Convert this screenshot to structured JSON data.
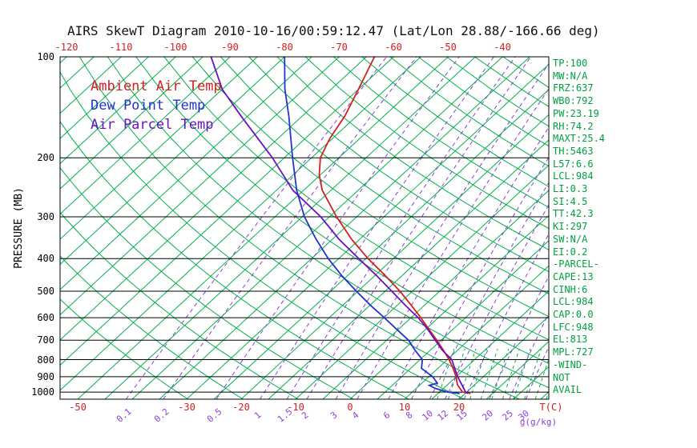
{
  "title": "AIRS SkewT Diagram 2010-10-16/00:59:12.47 (Lat/Lon 28.88/-166.66 deg)",
  "legend": [
    {
      "id": "ambient",
      "label": "Ambient Air Temp",
      "color": "#d02020"
    },
    {
      "id": "dewpoint",
      "label": "Dew Point Temp",
      "color": "#2233cc"
    },
    {
      "id": "parcel",
      "label": "Air Parcel Temp",
      "color": "#6a10c0"
    }
  ],
  "stats": [
    "TP:100",
    "MW:N/A",
    "FRZ:637",
    "WB0:792",
    "PW:23.19",
    "RH:74.2",
    "MAXT:25.4",
    "TH:5463",
    "L57:6.6",
    "LCL:984",
    "LI:0.3",
    "SI:4.5",
    "TT:42.3",
    "KI:297",
    "SW:N/A",
    "EI:0.2",
    "-PARCEL-",
    "CAPE:13",
    "CINH:6",
    "LCL:984",
    "CAP:0.0",
    "LFC:948",
    "EL:813",
    "MPL:727",
    "-WIND-",
    "NOT",
    "AVAIL"
  ],
  "colors": {
    "isotherm_green": "#00b04a",
    "mixing_purple": "#8a3fd6",
    "temp_red": "#d02020",
    "stats_green": "#00a040",
    "axis_black": "#000000"
  },
  "chart_data": {
    "type": "line",
    "variant": "skew-t-log-p",
    "title": "AIRS SkewT Diagram 2010-10-16/00:59:12.47 (Lat/Lon 28.88/-166.66 deg)",
    "xlabel": "T(C)",
    "ylabel": "PRESSURE (MB)",
    "y_scale": "log",
    "ylim": [
      1050,
      100
    ],
    "grid": "skew-t background: green 45-deg isotherms, green dry adiabats, purple dashed mixing-ratio lines, black isobars",
    "legend_position": "upper-left-inside",
    "axes": {
      "pressure_label": "PRESSURE (MB)",
      "pressure_ticks": [
        100,
        200,
        300,
        400,
        500,
        600,
        700,
        800,
        900,
        1000
      ],
      "top_temp_ticks": [
        -120,
        -110,
        -100,
        -90,
        -80,
        -70,
        -60,
        -50,
        -40
      ],
      "bottom_temp_ticks": [
        -50,
        -30,
        -20,
        -10,
        0,
        10,
        20
      ],
      "temp_unit": "T(C)",
      "mixing_ratio_ticks": [
        0.1,
        0.2,
        0.5,
        1,
        1.5,
        2,
        3,
        4,
        6,
        8,
        10,
        12,
        15,
        20,
        25,
        30
      ],
      "mixing_unit": "g(g/kg)"
    },
    "series": [
      {
        "id": "ambient",
        "name": "Ambient Air Temp",
        "color": "#d02020",
        "points": [
          [
            1010,
            21
          ],
          [
            1000,
            19.2
          ],
          [
            950,
            16.8
          ],
          [
            900,
            15
          ],
          [
            850,
            12.8
          ],
          [
            800,
            10.3
          ],
          [
            750,
            7.4
          ],
          [
            700,
            4.2
          ],
          [
            650,
            0.6
          ],
          [
            600,
            -3.2
          ],
          [
            550,
            -7.5
          ],
          [
            500,
            -12.3
          ],
          [
            450,
            -18
          ],
          [
            400,
            -24.6
          ],
          [
            350,
            -31.5
          ],
          [
            300,
            -38.7
          ],
          [
            250,
            -46.6
          ],
          [
            225,
            -50.2
          ],
          [
            200,
            -53.4
          ],
          [
            175,
            -55.5
          ],
          [
            150,
            -57.2
          ],
          [
            125,
            -60
          ],
          [
            100,
            -63.5
          ]
        ]
      },
      {
        "id": "dewpoint",
        "name": "Dew Point Temp",
        "color": "#2233cc",
        "points": [
          [
            1010,
            19
          ],
          [
            1000,
            16.5
          ],
          [
            975,
            13.5
          ],
          [
            955,
            11.8
          ],
          [
            940,
            12.8
          ],
          [
            900,
            10.7
          ],
          [
            850,
            7
          ],
          [
            800,
            5.4
          ],
          [
            750,
            2.2
          ],
          [
            700,
            -1
          ],
          [
            650,
            -5.3
          ],
          [
            600,
            -9.9
          ],
          [
            550,
            -15
          ],
          [
            500,
            -20.3
          ],
          [
            450,
            -26
          ],
          [
            400,
            -31.9
          ],
          [
            350,
            -38
          ],
          [
            300,
            -44.6
          ],
          [
            250,
            -51.3
          ],
          [
            200,
            -58.5
          ],
          [
            150,
            -67.5
          ],
          [
            125,
            -73.5
          ],
          [
            100,
            -80
          ]
        ]
      },
      {
        "id": "parcel",
        "name": "Air Parcel Temp",
        "color": "#6a10c0",
        "points": [
          [
            1010,
            20.5
          ],
          [
            1000,
            19.8
          ],
          [
            950,
            17.6
          ],
          [
            900,
            15.3
          ],
          [
            850,
            13.1
          ],
          [
            800,
            10.8
          ],
          [
            750,
            7.2
          ],
          [
            700,
            3.9
          ],
          [
            650,
            0.4
          ],
          [
            600,
            -3.7
          ],
          [
            550,
            -8.6
          ],
          [
            500,
            -13.8
          ],
          [
            450,
            -19.6
          ],
          [
            400,
            -26.3
          ],
          [
            350,
            -33.8
          ],
          [
            300,
            -41.6
          ],
          [
            250,
            -52
          ],
          [
            200,
            -62.2
          ],
          [
            150,
            -76.3
          ],
          [
            125,
            -85
          ],
          [
            100,
            -93.5
          ]
        ]
      }
    ]
  }
}
